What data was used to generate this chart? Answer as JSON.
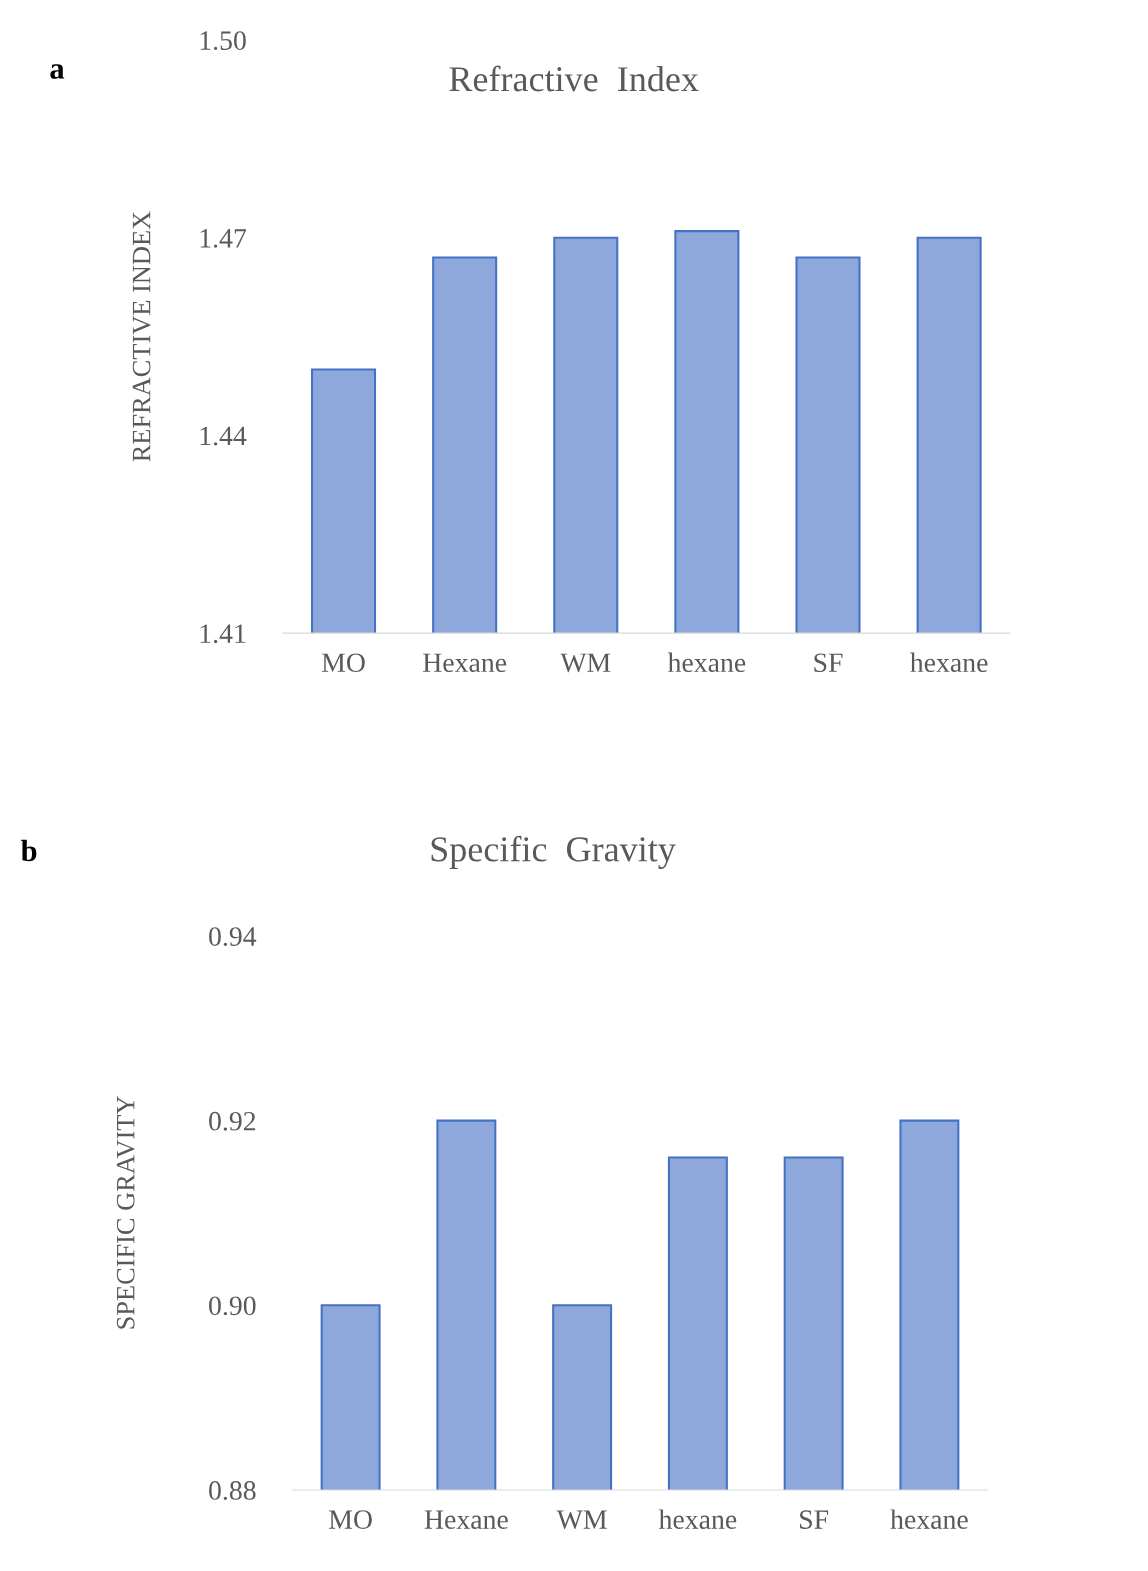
{
  "chart_data": [
    {
      "type": "bar",
      "title": "Refractive  Index",
      "ylabel": "REFRACTIVE INDEX",
      "annotations": [
        "a"
      ],
      "categories": [
        "MO",
        "Hexane",
        "WM",
        "hexane",
        "SF",
        "hexane"
      ],
      "values": [
        1.45,
        1.467,
        1.47,
        1.471,
        1.467,
        1.47
      ],
      "color": "#8fa8dc",
      "ylim": [
        1.41,
        1.5
      ],
      "yticks": [
        1.41,
        1.44,
        1.47,
        {
          "value": 1.5,
          "label": "1.50"
        }
      ],
      "grid": false
    },
    {
      "type": "bar",
      "title": "Specific  Gravity",
      "ylabel": "SPECIFIC GRAVITY",
      "annotations": [
        "b"
      ],
      "categories": [
        "MO",
        "Hexane",
        "WM",
        "hexane",
        "SF",
        "hexane"
      ],
      "values": [
        0.9,
        0.92,
        0.9,
        0.916,
        0.916,
        0.92
      ],
      "color": "#8fa8dc",
      "ylim": [
        0.88,
        0.94
      ],
      "yticks": [
        0.88,
        {
          "value": 0.9,
          "label": "0.90"
        },
        0.92,
        0.94
      ],
      "grid": false
    }
  ]
}
